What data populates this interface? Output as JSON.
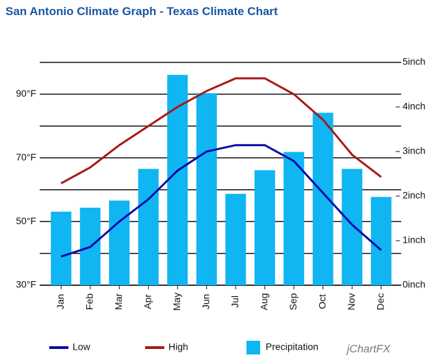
{
  "chart_data": {
    "type": "combo",
    "title": "San Antonio Climate Graph - Texas Climate Chart",
    "categories": [
      "Jan",
      "Feb",
      "Mar",
      "Apr",
      "May",
      "Jun",
      "Jul",
      "Aug",
      "Sep",
      "Oct",
      "Nov",
      "Dec"
    ],
    "series": [
      {
        "name": "Low",
        "type": "line",
        "color": "#0a0aa8",
        "values": [
          39,
          42,
          50,
          57,
          66,
          72,
          74,
          74,
          69,
          59,
          49,
          41
        ]
      },
      {
        "name": "High",
        "type": "line",
        "color": "#a8181a",
        "values": [
          62,
          67,
          74,
          80,
          86,
          91,
          95,
          95,
          90,
          82,
          71,
          64
        ]
      },
      {
        "name": "Precipitation",
        "type": "bar",
        "axis": "y2",
        "color": "#0fb6f2",
        "values": [
          1.65,
          1.74,
          1.9,
          2.61,
          4.72,
          4.31,
          2.05,
          2.58,
          2.99,
          3.87,
          2.61,
          1.98
        ]
      }
    ],
    "ylim": [
      30,
      100
    ],
    "yticks": [
      {
        "value": 30,
        "label": "30°F"
      },
      {
        "value": 50,
        "label": "50°F"
      },
      {
        "value": 70,
        "label": "70°F"
      },
      {
        "value": 90,
        "label": "90°F"
      }
    ],
    "yminorticks": [
      40,
      60,
      80,
      100
    ],
    "y2lim": [
      0,
      5
    ],
    "y2ticks": [
      {
        "value": 0,
        "label": "0inch"
      },
      {
        "value": 1,
        "label": "1inch"
      },
      {
        "value": 2,
        "label": "2inch"
      },
      {
        "value": 3,
        "label": "3inch"
      },
      {
        "value": 4,
        "label": "4inch"
      },
      {
        "value": 5,
        "label": "5inch"
      }
    ],
    "grid": true,
    "legend": "bottom",
    "branding": "jChartFX"
  }
}
